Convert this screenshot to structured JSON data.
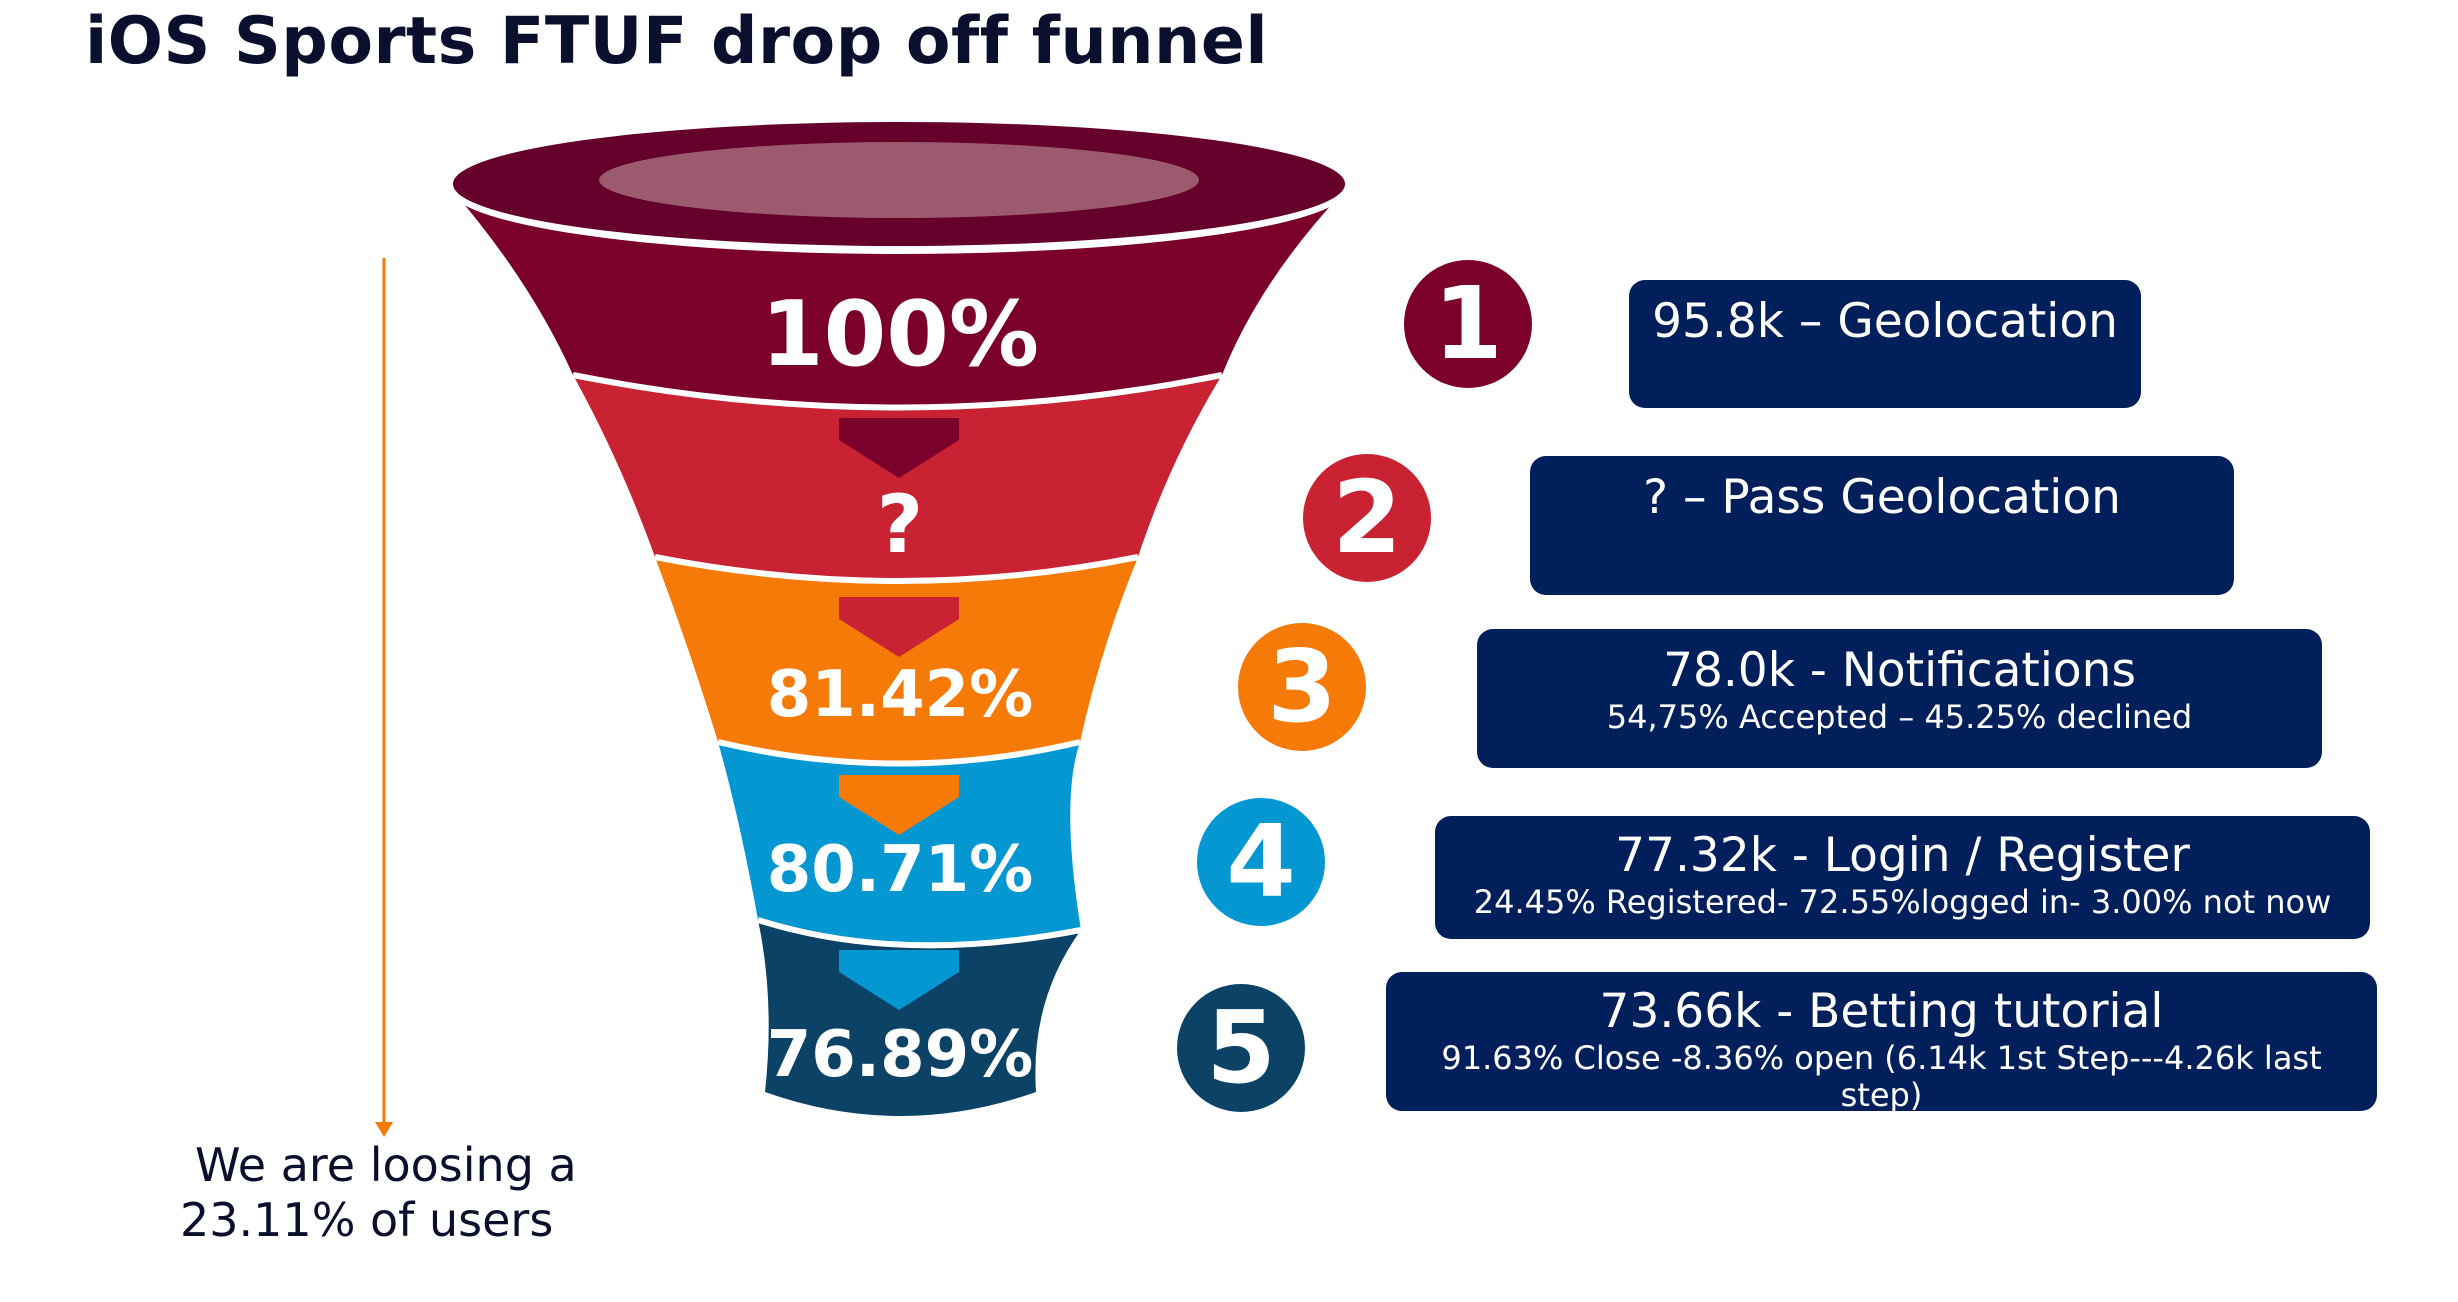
{
  "title": "iOS Sports FTUF drop off funnel",
  "colors": {
    "stage1": "#7b002c",
    "stage2": "#c92233",
    "stage3": "#f57a08",
    "stage4": "#0597d1",
    "stage5": "#0b4266",
    "box": "#001f5b",
    "arrow": "#f57a08"
  },
  "funnel": {
    "stages": [
      {
        "percent": "100%"
      },
      {
        "percent": "?"
      },
      {
        "percent": "81.42%"
      },
      {
        "percent": "80.71%"
      },
      {
        "percent": "76.89%"
      }
    ]
  },
  "steps": [
    {
      "number": "1",
      "main": "95.8k – Geolocation",
      "sub": ""
    },
    {
      "number": "2",
      "main": "? – Pass Geolocation",
      "sub": ""
    },
    {
      "number": "3",
      "main": "78.0k  - Notifications",
      "sub": "54,75% Accepted – 45.25% declined"
    },
    {
      "number": "4",
      "main": "77.32k  - Login / Register",
      "sub": "24.45% Registered- 72.55%logged in- 3.00% not now"
    },
    {
      "number": "5",
      "main": "73.66k - Betting tutorial",
      "sub": "91.63% Close -8.36% open (6.14k  1st Step---4.26k last step)"
    }
  ],
  "note": {
    "line1": "We are loosing a",
    "line2": "23.11% of users"
  }
}
